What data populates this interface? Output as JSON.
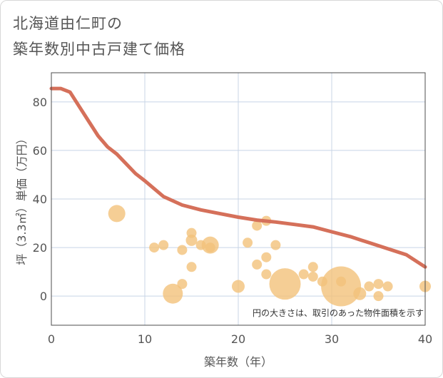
{
  "title": {
    "line1": "北海道由仁町の",
    "line2": "築年数別中古戸建て価格"
  },
  "chart_data": {
    "type": "scatter",
    "xlabel": "築年数（年）",
    "ylabel": "坪（3.3㎡）単価（万円）",
    "xlim": [
      0,
      40
    ],
    "ylim": [
      -12,
      92
    ],
    "x_ticks": [
      0,
      10,
      20,
      30,
      40
    ],
    "y_ticks": [
      0,
      20,
      40,
      60,
      80
    ],
    "grid": true,
    "note": "円の大きさは、取引のあった物件面積を示す",
    "colors": {
      "line": "#d5705a",
      "bubble": "#f2c27a",
      "grid": "#c8d4e6",
      "frame": "#4d4d4d"
    },
    "series": [
      {
        "type": "line",
        "x": [
          0,
          1,
          2,
          3,
          4,
          5,
          6,
          7,
          8,
          9,
          10,
          12,
          14,
          16,
          18,
          20,
          22,
          24,
          26,
          28,
          30,
          32,
          34,
          36,
          38,
          40
        ],
        "y": [
          85.5,
          85.5,
          84,
          78,
          72,
          66,
          61.5,
          58.5,
          54.5,
          50.5,
          47.5,
          41,
          37.5,
          35.5,
          34,
          32.5,
          31.3,
          30.5,
          29.5,
          28.5,
          26.5,
          24.5,
          22,
          19.5,
          17,
          12
        ]
      },
      {
        "type": "bubble",
        "points": [
          {
            "x": 7,
            "y": 34,
            "r": 12
          },
          {
            "x": 11,
            "y": 20,
            "r": 7
          },
          {
            "x": 12,
            "y": 21,
            "r": 7
          },
          {
            "x": 13,
            "y": 1,
            "r": 14
          },
          {
            "x": 14,
            "y": 19,
            "r": 7
          },
          {
            "x": 14,
            "y": 5,
            "r": 7
          },
          {
            "x": 15,
            "y": 26,
            "r": 7
          },
          {
            "x": 15,
            "y": 23,
            "r": 8
          },
          {
            "x": 15,
            "y": 12,
            "r": 7
          },
          {
            "x": 16,
            "y": 21,
            "r": 7
          },
          {
            "x": 17,
            "y": 21,
            "r": 12
          },
          {
            "x": 17,
            "y": 20,
            "r": 7
          },
          {
            "x": 20,
            "y": 4,
            "r": 9
          },
          {
            "x": 21,
            "y": 22,
            "r": 7
          },
          {
            "x": 22,
            "y": 29,
            "r": 7
          },
          {
            "x": 22,
            "y": 13,
            "r": 7
          },
          {
            "x": 23,
            "y": 31,
            "r": 7
          },
          {
            "x": 23,
            "y": 16,
            "r": 7
          },
          {
            "x": 23,
            "y": 9,
            "r": 7
          },
          {
            "x": 24,
            "y": 21,
            "r": 7
          },
          {
            "x": 25,
            "y": 5,
            "r": 22
          },
          {
            "x": 27,
            "y": 9,
            "r": 7
          },
          {
            "x": 28,
            "y": 12,
            "r": 7
          },
          {
            "x": 28,
            "y": 8,
            "r": 7
          },
          {
            "x": 29,
            "y": 6,
            "r": 7
          },
          {
            "x": 31,
            "y": 6,
            "r": 7
          },
          {
            "x": 31,
            "y": 4,
            "r": 28
          },
          {
            "x": 33,
            "y": 1,
            "r": 9
          },
          {
            "x": 34,
            "y": 4,
            "r": 7
          },
          {
            "x": 35,
            "y": 5,
            "r": 7
          },
          {
            "x": 35,
            "y": 0,
            "r": 7
          },
          {
            "x": 36,
            "y": 4,
            "r": 7
          },
          {
            "x": 40,
            "y": 4,
            "r": 8
          }
        ]
      }
    ]
  }
}
